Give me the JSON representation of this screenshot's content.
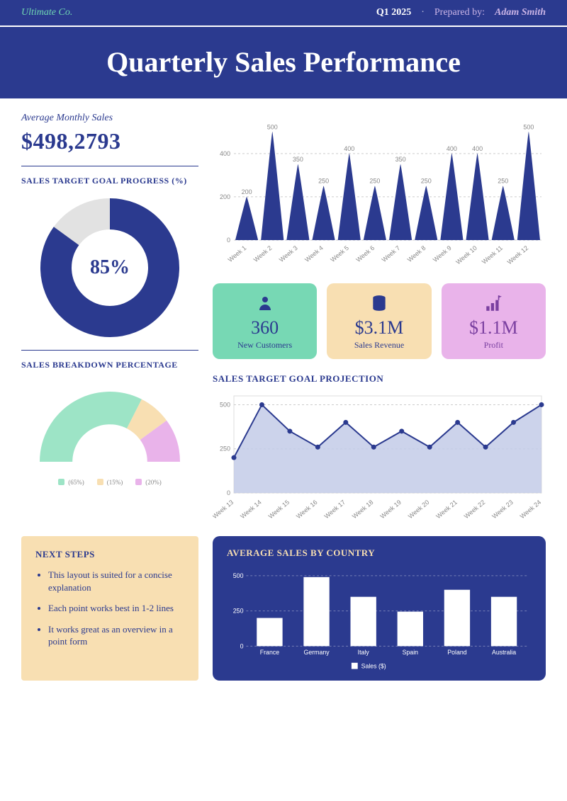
{
  "header": {
    "company": "Ultimate Co.",
    "period": "Q1 2025",
    "prepared_label": "Prepared by:",
    "author": "Adam Smith"
  },
  "title": "Quarterly Sales Performance",
  "colors": {
    "primary": "#2b3a8f",
    "green": "#77d8b4",
    "peach": "#f8dfb2",
    "pink": "#e9b3ea",
    "gray": "#e2e2e2",
    "area_fill": "#c3cbe8"
  },
  "avg_monthly": {
    "label": "Average Monthly Sales",
    "value": "$498,2793"
  },
  "goal_progress": {
    "title": "SALES TARGET GOAL PROGRESS (%)",
    "percent": 85,
    "display": "85%",
    "ring_color": "#2b3a8f",
    "track_color": "#e2e2e2"
  },
  "breakdown": {
    "title": "SALES BREAKDOWN PERCENTAGE",
    "segments": [
      {
        "pct": 65,
        "color": "#9de4c6",
        "label": "(65%)"
      },
      {
        "pct": 15,
        "color": "#f8dfb2",
        "label": "(15%)"
      },
      {
        "pct": 20,
        "color": "#e9b3ea",
        "label": "(20%)"
      }
    ]
  },
  "spike_chart": {
    "type": "area-spikes",
    "y_ticks": [
      0,
      200,
      400
    ],
    "ymax": 550,
    "labels": [
      "Week 1",
      "Week 2",
      "Week 3",
      "Week 4",
      "Week 5",
      "Week 6",
      "Week 7",
      "Week 8",
      "Week 9",
      "Week 10",
      "Week 11",
      "Week 12"
    ],
    "values": [
      200,
      500,
      350,
      250,
      400,
      250,
      350,
      250,
      400,
      400,
      250,
      500
    ],
    "show_value_labels": true,
    "fill": "#2b3a8f"
  },
  "stat_cards": [
    {
      "icon": "user",
      "value": "360",
      "label": "New Customers",
      "bg": "#77d8b4",
      "fg": "#2b3a8f"
    },
    {
      "icon": "db",
      "value": "$3.1M",
      "label": "Sales Revenue",
      "bg": "#f8dfb2",
      "fg": "#2b3a8f"
    },
    {
      "icon": "flag-stairs",
      "value": "$1.1M",
      "label": "Profit",
      "bg": "#e9b3ea",
      "fg": "#7a3fa0"
    }
  ],
  "projection": {
    "title": "SALES TARGET GOAL PROJECTION",
    "y_ticks": [
      0,
      250,
      500
    ],
    "ymax": 550,
    "labels": [
      "Week 13",
      "Week 14",
      "Week 15",
      "Week 16",
      "Week 17",
      "Week 18",
      "Week 19",
      "Week 20",
      "Week 21",
      "Week 22",
      "Week 23",
      "Week 24"
    ],
    "values": [
      200,
      500,
      350,
      260,
      400,
      260,
      350,
      260,
      400,
      260,
      400,
      500
    ],
    "line_color": "#2b3a8f",
    "fill_color": "#c3cbe8",
    "marker_color": "#2b3a8f"
  },
  "next_steps": {
    "title": "NEXT STEPS",
    "items": [
      "This layout is suited for a concise explanation",
      "Each point works best in 1-2 lines",
      "It works great as an overview in a point form"
    ]
  },
  "country_chart": {
    "title": "AVERAGE SALES BY COUNTRY",
    "y_ticks": [
      0,
      250,
      500
    ],
    "ymax": 550,
    "labels": [
      "France",
      "Germany",
      "Italy",
      "Spain",
      "Poland",
      "Australia"
    ],
    "values": [
      200,
      490,
      350,
      245,
      400,
      350
    ],
    "bar_color": "#ffffff",
    "legend": "Sales ($)"
  }
}
